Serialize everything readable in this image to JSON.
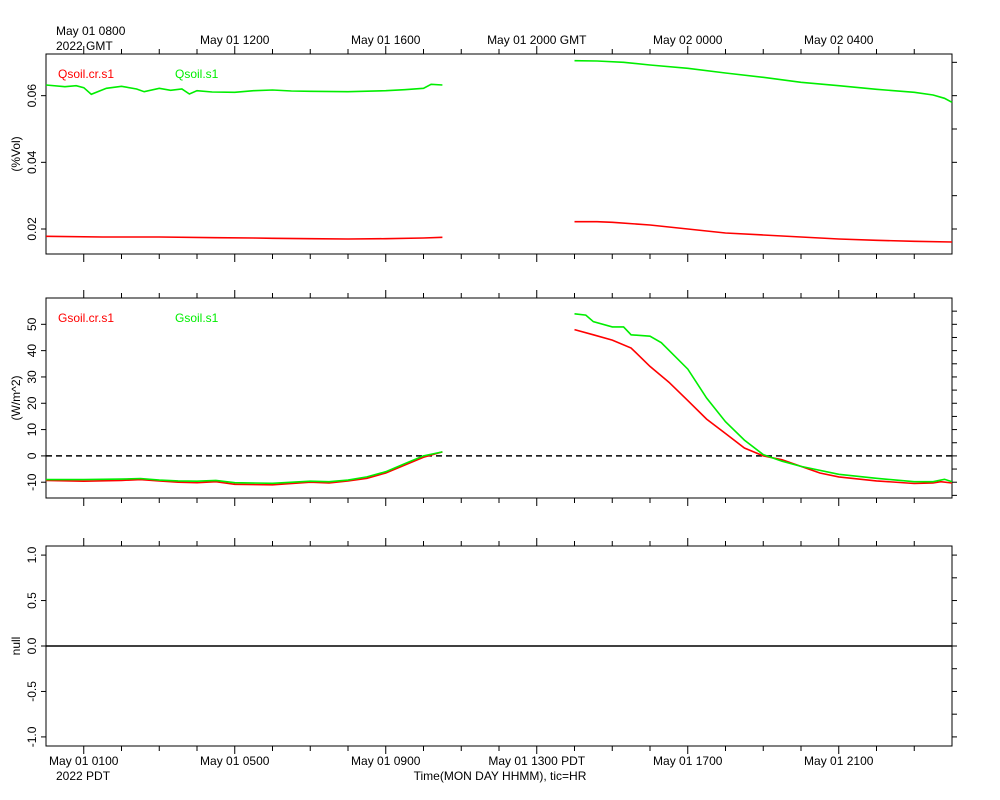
{
  "time_axis": {
    "top_labels": [
      "May 01 1200",
      "May 01 1600",
      "May 01 2000 GMT",
      "May 02 0000",
      "May 02 0400"
    ],
    "top_left_line1": "May 01 0800",
    "top_left_line2": "2022 GMT",
    "bottom_labels": [
      "May 01 0100",
      "May 01 0500",
      "May 01 0900",
      "May 01 1300 PDT",
      "May 01 1700",
      "May 01 2100"
    ],
    "bottom_left": "2022 PDT",
    "xlabel": "Time(MON DAY HHMM), tic=HR"
  },
  "chart_data": [
    {
      "type": "line",
      "ylabel": "(%Vol)",
      "ylim": [
        0.0125,
        0.0725
      ],
      "yticks": [
        "0.02",
        "0.04",
        "0.06"
      ],
      "xlim_hours": [
        0,
        24
      ],
      "series": [
        {
          "name": "Qsoil.cr.s1",
          "color": "#ff0000",
          "segments": [
            [
              [
                0.0,
                0.0178
              ],
              [
                1.5,
                0.0176
              ],
              [
                3.0,
                0.0176
              ],
              [
                4.5,
                0.0174
              ],
              [
                5.5,
                0.0173
              ],
              [
                6.0,
                0.0172
              ],
              [
                7.0,
                0.0171
              ],
              [
                8.0,
                0.017
              ],
              [
                9.0,
                0.0171
              ],
              [
                10.0,
                0.0173
              ],
              [
                10.5,
                0.0175
              ]
            ],
            [
              [
                14.0,
                0.0222
              ],
              [
                14.6,
                0.0222
              ],
              [
                15.0,
                0.022
              ],
              [
                16.0,
                0.0212
              ],
              [
                17.0,
                0.02
              ],
              [
                18.0,
                0.0188
              ],
              [
                19.0,
                0.0182
              ],
              [
                20.0,
                0.0176
              ],
              [
                21.0,
                0.017
              ],
              [
                22.0,
                0.0166
              ],
              [
                23.0,
                0.0163
              ],
              [
                24.0,
                0.0161
              ]
            ]
          ]
        },
        {
          "name": "Qsoil.s1",
          "color": "#00ee00",
          "segments": [
            [
              [
                0.0,
                0.0632
              ],
              [
                0.5,
                0.0627
              ],
              [
                0.8,
                0.063
              ],
              [
                1.0,
                0.0624
              ],
              [
                1.2,
                0.0604
              ],
              [
                1.6,
                0.0622
              ],
              [
                2.0,
                0.0628
              ],
              [
                2.4,
                0.062
              ],
              [
                2.6,
                0.0612
              ],
              [
                3.0,
                0.0622
              ],
              [
                3.3,
                0.0616
              ],
              [
                3.6,
                0.062
              ],
              [
                3.8,
                0.0605
              ],
              [
                4.0,
                0.0615
              ],
              [
                4.4,
                0.0611
              ],
              [
                5.0,
                0.061
              ],
              [
                5.5,
                0.0615
              ],
              [
                6.0,
                0.0617
              ],
              [
                6.5,
                0.0614
              ],
              [
                7.0,
                0.0613
              ],
              [
                8.0,
                0.0612
              ],
              [
                9.0,
                0.0615
              ],
              [
                9.5,
                0.0618
              ],
              [
                10.0,
                0.0622
              ],
              [
                10.2,
                0.0634
              ],
              [
                10.5,
                0.0632
              ]
            ],
            [
              [
                14.0,
                0.0705
              ],
              [
                14.6,
                0.0704
              ],
              [
                15.3,
                0.07
              ],
              [
                16.0,
                0.0692
              ],
              [
                17.0,
                0.0682
              ],
              [
                18.0,
                0.0668
              ],
              [
                19.0,
                0.0655
              ],
              [
                20.0,
                0.064
              ],
              [
                21.0,
                0.063
              ],
              [
                22.0,
                0.0619
              ],
              [
                23.0,
                0.061
              ],
              [
                23.5,
                0.0602
              ],
              [
                23.8,
                0.0592
              ],
              [
                24.0,
                0.058
              ]
            ]
          ]
        }
      ]
    },
    {
      "type": "line",
      "ylabel": "(W/m^2)",
      "ylim": [
        -16,
        60
      ],
      "yticks": [
        "-10",
        "0",
        "10",
        "20",
        "30",
        "40",
        "50"
      ],
      "reference_line": {
        "y": 0,
        "style": "dashed"
      },
      "xlim_hours": [
        0,
        24
      ],
      "series": [
        {
          "name": "Gsoil.cr.s1",
          "color": "#ff0000",
          "segments": [
            [
              [
                0.0,
                -9.3
              ],
              [
                1.0,
                -9.6
              ],
              [
                2.0,
                -9.3
              ],
              [
                2.5,
                -9.0
              ],
              [
                3.0,
                -9.5
              ],
              [
                3.5,
                -10.0
              ],
              [
                4.0,
                -10.2
              ],
              [
                4.5,
                -9.8
              ],
              [
                5.0,
                -10.8
              ],
              [
                6.0,
                -11.0
              ],
              [
                7.0,
                -10.0
              ],
              [
                7.5,
                -10.3
              ],
              [
                8.0,
                -9.5
              ],
              [
                8.5,
                -8.5
              ],
              [
                9.0,
                -6.5
              ],
              [
                9.5,
                -3.5
              ],
              [
                10.0,
                -0.5
              ],
              [
                10.5,
                1.5
              ]
            ],
            [
              [
                14.0,
                48.0
              ],
              [
                14.5,
                46.0
              ],
              [
                15.0,
                44.0
              ],
              [
                15.5,
                41.0
              ],
              [
                16.0,
                34.0
              ],
              [
                16.5,
                28.0
              ],
              [
                17.0,
                21.0
              ],
              [
                17.5,
                14.0
              ],
              [
                18.0,
                8.5
              ],
              [
                18.5,
                3.0
              ],
              [
                19.0,
                0.0
              ],
              [
                19.5,
                -1.5
              ],
              [
                20.0,
                -4.0
              ],
              [
                20.5,
                -6.5
              ],
              [
                21.0,
                -8.0
              ],
              [
                22.0,
                -9.5
              ],
              [
                23.0,
                -10.5
              ],
              [
                23.5,
                -10.3
              ],
              [
                23.7,
                -9.8
              ],
              [
                24.0,
                -10.3
              ]
            ]
          ]
        },
        {
          "name": "Gsoil.s1",
          "color": "#00ee00",
          "segments": [
            [
              [
                0.0,
                -9.0
              ],
              [
                1.0,
                -9.0
              ],
              [
                2.0,
                -8.8
              ],
              [
                2.5,
                -8.6
              ],
              [
                3.0,
                -9.2
              ],
              [
                3.5,
                -9.5
              ],
              [
                4.0,
                -9.6
              ],
              [
                4.5,
                -9.3
              ],
              [
                5.0,
                -10.2
              ],
              [
                6.0,
                -10.4
              ],
              [
                7.0,
                -9.6
              ],
              [
                7.5,
                -9.8
              ],
              [
                8.0,
                -9.2
              ],
              [
                8.5,
                -8.0
              ],
              [
                9.0,
                -6.0
              ],
              [
                9.5,
                -3.0
              ],
              [
                10.0,
                0.0
              ],
              [
                10.5,
                1.5
              ]
            ],
            [
              [
                14.0,
                54.0
              ],
              [
                14.3,
                53.5
              ],
              [
                14.5,
                51.0
              ],
              [
                15.0,
                49.0
              ],
              [
                15.3,
                49.0
              ],
              [
                15.5,
                46.0
              ],
              [
                16.0,
                45.5
              ],
              [
                16.3,
                43.0
              ],
              [
                17.0,
                33.0
              ],
              [
                17.5,
                22.0
              ],
              [
                18.0,
                13.0
              ],
              [
                18.5,
                6.0
              ],
              [
                19.0,
                0.5
              ],
              [
                19.5,
                -2.0
              ],
              [
                20.0,
                -4.0
              ],
              [
                21.0,
                -7.0
              ],
              [
                22.0,
                -8.5
              ],
              [
                23.0,
                -9.8
              ],
              [
                23.5,
                -9.8
              ],
              [
                23.8,
                -8.9
              ],
              [
                24.0,
                -9.8
              ]
            ]
          ]
        }
      ]
    },
    {
      "type": "line",
      "ylabel": "null",
      "ylim": [
        -1.1,
        1.1
      ],
      "yticks": [
        "-1.0",
        "-0.5",
        "0.0",
        "0.5",
        "1.0"
      ],
      "reference_line": {
        "y": 0,
        "style": "solid"
      },
      "xlim_hours": [
        0,
        24
      ],
      "series": []
    }
  ]
}
